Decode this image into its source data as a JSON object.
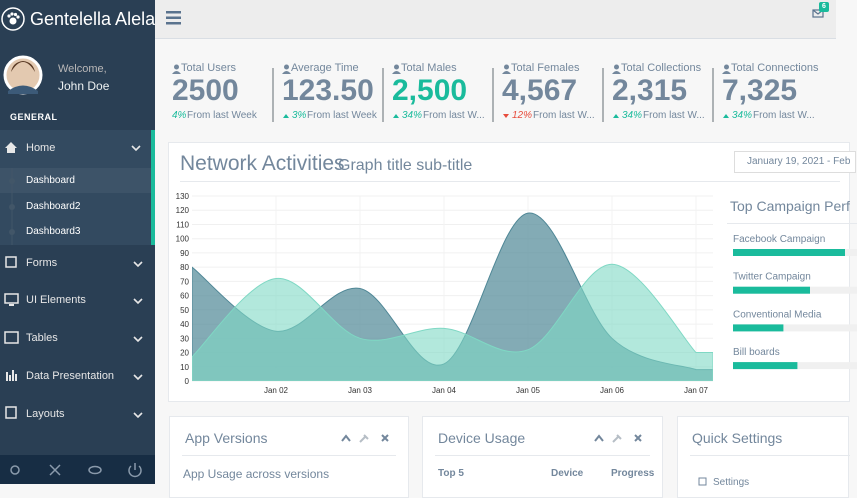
{
  "brand": "Gentelella Alela!",
  "profile": {
    "welcome": "Welcome,",
    "name": "John Doe"
  },
  "sidebar": {
    "section": "GENERAL",
    "menu": [
      {
        "label": "Home",
        "children": [
          "Dashboard",
          "Dashboard2",
          "Dashboard3"
        ]
      },
      {
        "label": "Forms"
      },
      {
        "label": "UI Elements"
      },
      {
        "label": "Tables"
      },
      {
        "label": "Data Presentation"
      },
      {
        "label": "Layouts"
      }
    ]
  },
  "notifications": "6",
  "stats": [
    {
      "label": "Total Users",
      "value": "2500",
      "change": "4%",
      "note": "From last Week",
      "trend": "none"
    },
    {
      "label": "Average Time",
      "value": "123.50",
      "change": "3%",
      "note": "From last Week",
      "trend": "up"
    },
    {
      "label": "Total Males",
      "value": "2,500",
      "change": "34%",
      "note": "From last W...",
      "trend": "up",
      "highlight": true
    },
    {
      "label": "Total Females",
      "value": "4,567",
      "change": "12%",
      "note": "From last W...",
      "trend": "down"
    },
    {
      "label": "Total Collections",
      "value": "2,315",
      "change": "34%",
      "note": "From last W...",
      "trend": "up"
    },
    {
      "label": "Total Connections",
      "value": "7,325",
      "change": "34%",
      "note": "From last W...",
      "trend": "up"
    }
  ],
  "network": {
    "title": "Network Activities",
    "subtitle": "Graph title sub-title",
    "date_range": "January 19, 2021 - Feb",
    "chart": {
      "type": "area",
      "categories": [
        null,
        "Jan 02",
        "Jan 03",
        "Jan 04",
        "Jan 05",
        "Jan 06",
        "Jan 07"
      ],
      "series": [
        {
          "color": "#4f8796",
          "values": [
            80,
            35,
            65,
            12,
            118,
            30,
            8
          ]
        },
        {
          "color": "#7fd8c4",
          "values": [
            17,
            72,
            30,
            37,
            22,
            82,
            20
          ]
        }
      ],
      "ylim": [
        0,
        130
      ],
      "yticks": [
        0,
        10,
        20,
        30,
        40,
        50,
        60,
        70,
        80,
        90,
        100,
        110,
        120,
        130
      ],
      "grid": true
    },
    "campaign": {
      "title": "Top Campaign Perf",
      "color": "#1abb9c",
      "items": [
        {
          "name": "Facebook Campaign",
          "value": 80
        },
        {
          "name": "Twitter Campaign",
          "value": 55
        },
        {
          "name": "Conventional Media",
          "value": 36
        },
        {
          "name": "Bill boards",
          "value": 46
        }
      ]
    }
  },
  "panels": {
    "app_versions": {
      "title": "App Versions",
      "subtitle": "App Usage across versions"
    },
    "device_usage": {
      "title": "Device Usage",
      "columns": [
        "Top 5",
        "Device",
        "Progress"
      ]
    },
    "quick_settings": {
      "title": "Quick Settings",
      "items": [
        "Settings"
      ]
    }
  }
}
